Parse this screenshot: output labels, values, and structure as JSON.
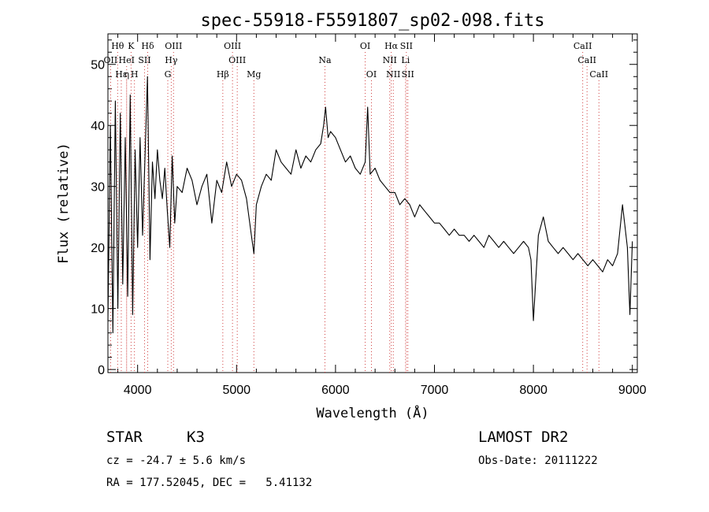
{
  "chart_data": {
    "type": "line",
    "title": "spec-55918-F5591807_sp02-098.fits",
    "xlabel": "Wavelength (Å)",
    "ylabel": "Flux (relative)",
    "xlim": [
      3700,
      9050
    ],
    "ylim": [
      -0.5,
      55
    ],
    "xticks": [
      4000,
      5000,
      6000,
      7000,
      8000,
      9000
    ],
    "yticks": [
      0,
      10,
      20,
      30,
      40,
      50
    ],
    "grid": false,
    "series": [
      {
        "x": [
          3700,
          3725,
          3750,
          3775,
          3800,
          3825,
          3850,
          3875,
          3900,
          3925,
          3950,
          3975,
          4000,
          4025,
          4050,
          4075,
          4100,
          4125,
          4150,
          4175,
          4200,
          4225,
          4250,
          4275,
          4300,
          4325,
          4350,
          4375,
          4400,
          4450,
          4500,
          4550,
          4600,
          4650,
          4700,
          4750,
          4800,
          4850,
          4900,
          4950,
          5000,
          5050,
          5100,
          5150,
          5175,
          5200,
          5250,
          5300,
          5350,
          5400,
          5450,
          5500,
          5550,
          5600,
          5650,
          5700,
          5750,
          5800,
          5850,
          5880,
          5900,
          5925,
          5950,
          6000,
          6050,
          6100,
          6150,
          6200,
          6250,
          6300,
          6325,
          6350,
          6400,
          6450,
          6500,
          6550,
          6600,
          6650,
          6700,
          6750,
          6800,
          6850,
          6900,
          6950,
          7000,
          7050,
          7100,
          7150,
          7200,
          7250,
          7300,
          7350,
          7400,
          7450,
          7500,
          7550,
          7600,
          7650,
          7700,
          7750,
          7800,
          7850,
          7900,
          7950,
          7975,
          8000,
          8050,
          8100,
          8150,
          8200,
          8250,
          8300,
          8350,
          8400,
          8450,
          8500,
          8550,
          8600,
          8650,
          8700,
          8750,
          8800,
          8850,
          8900,
          8950,
          8975,
          9000
        ],
        "y": [
          8,
          40,
          6,
          44,
          10,
          42,
          14,
          38,
          12,
          45,
          9,
          36,
          20,
          38,
          22,
          35,
          48,
          18,
          34,
          28,
          36,
          31,
          28,
          33,
          26,
          20,
          35,
          24,
          30,
          29,
          33,
          31,
          27,
          30,
          32,
          24,
          31,
          29,
          34,
          30,
          32,
          31,
          28,
          22,
          19,
          27,
          30,
          32,
          31,
          36,
          34,
          33,
          32,
          36,
          33,
          35,
          34,
          36,
          37,
          40,
          43,
          38,
          39,
          38,
          36,
          34,
          35,
          33,
          32,
          34,
          43,
          32,
          33,
          31,
          30,
          29,
          29,
          27,
          28,
          27,
          25,
          27,
          26,
          25,
          24,
          24,
          23,
          22,
          23,
          22,
          22,
          21,
          22,
          21,
          20,
          22,
          21,
          20,
          21,
          20,
          19,
          20,
          21,
          20,
          18,
          8,
          22,
          25,
          21,
          20,
          19,
          20,
          19,
          18,
          19,
          18,
          17,
          18,
          17,
          16,
          18,
          17,
          19,
          27,
          20,
          9,
          21
        ]
      }
    ],
    "lines": [
      {
        "label": "Hθ",
        "x": 3798,
        "row": 0
      },
      {
        "label": "K",
        "x": 3934,
        "row": 0
      },
      {
        "label": "Hδ",
        "x": 4102,
        "row": 0
      },
      {
        "label": "OIII",
        "x": 4363,
        "row": 0
      },
      {
        "label": "OIII",
        "x": 4959,
        "row": 0
      },
      {
        "label": "OI",
        "x": 6300,
        "row": 0
      },
      {
        "label": "Hα",
        "x": 6563,
        "row": 0
      },
      {
        "label": "SII",
        "x": 6716,
        "row": 0
      },
      {
        "label": "CaII",
        "x": 8498,
        "row": 0
      },
      {
        "label": "OII",
        "x": 3727,
        "row": 1
      },
      {
        "label": "HeI",
        "x": 3889,
        "row": 1
      },
      {
        "label": "SII",
        "x": 4070,
        "row": 1
      },
      {
        "label": "Hγ",
        "x": 4340,
        "row": 1
      },
      {
        "label": "OIII",
        "x": 5007,
        "row": 1
      },
      {
        "label": "Na",
        "x": 5893,
        "row": 1
      },
      {
        "label": "NII",
        "x": 6548,
        "row": 1
      },
      {
        "label": "Li",
        "x": 6708,
        "row": 1
      },
      {
        "label": "CaII",
        "x": 8542,
        "row": 1
      },
      {
        "label": "Hε",
        "x": 3835,
        "row": 2
      },
      {
        "label": "η",
        "x": 3889,
        "row": 2
      },
      {
        "label": "H",
        "x": 3968,
        "row": 2
      },
      {
        "label": "G",
        "x": 4305,
        "row": 2
      },
      {
        "label": "Hβ",
        "x": 4861,
        "row": 2
      },
      {
        "label": "Mg",
        "x": 5175,
        "row": 2
      },
      {
        "label": "OI",
        "x": 6363,
        "row": 2
      },
      {
        "label": "NII",
        "x": 6584,
        "row": 2
      },
      {
        "label": "SII",
        "x": 6731,
        "row": 2
      },
      {
        "label": "CaII",
        "x": 8662,
        "row": 2
      }
    ]
  },
  "info": {
    "class": "STAR",
    "subclass": "K3",
    "survey": "LAMOST DR2",
    "cz": "cz = -24.7 ± 5.6 km/s",
    "obsdate": "Obs-Date: 20111222",
    "radec": "RA = 177.52045, DEC =   5.41132"
  },
  "colors": {
    "marker": "#d04040",
    "line": "#000000"
  }
}
